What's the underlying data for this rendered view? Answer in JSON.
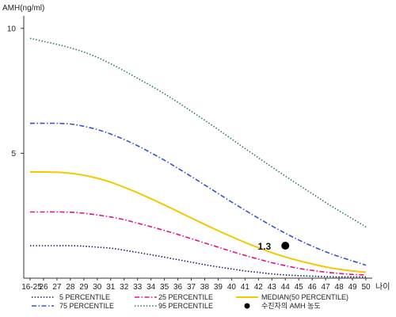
{
  "chart_data": {
    "type": "line",
    "ylabel": "AMH(ng/ml)",
    "xlabel": "나이",
    "ylim": [
      0,
      10.5
    ],
    "yticks": [
      5,
      10
    ],
    "x": [
      "16-25",
      "26",
      "27",
      "28",
      "29",
      "30",
      "31",
      "32",
      "33",
      "34",
      "35",
      "36",
      "37",
      "38",
      "39",
      "40",
      "41",
      "42",
      "43",
      "44",
      "45",
      "46",
      "47",
      "48",
      "49",
      "50"
    ],
    "grid": false,
    "legend_position": "bottom",
    "series": [
      {
        "name": "5 PERCENTILE",
        "color": "#1a1a5e",
        "style": "dotted",
        "values": [
          1.3,
          1.3,
          1.3,
          1.3,
          1.28,
          1.24,
          1.2,
          1.12,
          1.03,
          0.94,
          0.84,
          0.74,
          0.64,
          0.54,
          0.45,
          0.37,
          0.29,
          0.23,
          0.17,
          0.13,
          0.1,
          0.08,
          0.06,
          0.05,
          0.05,
          0.05
        ]
      },
      {
        "name": "25 PERCENTILE",
        "color": "#e0138c",
        "style": "dashdot",
        "values": [
          2.65,
          2.65,
          2.65,
          2.64,
          2.6,
          2.53,
          2.45,
          2.34,
          2.2,
          2.06,
          1.91,
          1.75,
          1.58,
          1.41,
          1.24,
          1.07,
          0.91,
          0.76,
          0.62,
          0.5,
          0.39,
          0.31,
          0.24,
          0.19,
          0.15,
          0.13
        ]
      },
      {
        "name": "MEDIAN(50 PERCENTILE)",
        "color": "#f5c800",
        "style": "solid",
        "values": [
          4.25,
          4.25,
          4.24,
          4.2,
          4.12,
          4.0,
          3.84,
          3.64,
          3.42,
          3.18,
          2.93,
          2.67,
          2.41,
          2.15,
          1.9,
          1.66,
          1.43,
          1.22,
          1.02,
          0.85,
          0.7,
          0.57,
          0.45,
          0.36,
          0.29,
          0.24
        ]
      },
      {
        "name": "75 PERCENTILE",
        "color": "#3355cc",
        "style": "dashdot",
        "values": [
          6.2,
          6.2,
          6.2,
          6.17,
          6.08,
          5.95,
          5.77,
          5.55,
          5.3,
          5.02,
          4.72,
          4.4,
          4.07,
          3.73,
          3.39,
          3.05,
          2.72,
          2.4,
          2.09,
          1.8,
          1.53,
          1.28,
          1.06,
          0.86,
          0.69,
          0.52
        ]
      },
      {
        "name": "95 PERCENTILE",
        "color": "#2e7d4f",
        "style": "dotted",
        "values": [
          9.6,
          9.48,
          9.36,
          9.22,
          9.05,
          8.84,
          8.58,
          8.3,
          8.0,
          7.7,
          7.38,
          7.04,
          6.68,
          6.32,
          5.95,
          5.57,
          5.19,
          4.82,
          4.45,
          4.09,
          3.73,
          3.38,
          3.03,
          2.7,
          2.38,
          2.05
        ]
      }
    ],
    "point": {
      "name": "수진자의 AMH 농도",
      "x": "44",
      "y": 1.3,
      "label": "1.3",
      "color": "#000000"
    }
  }
}
